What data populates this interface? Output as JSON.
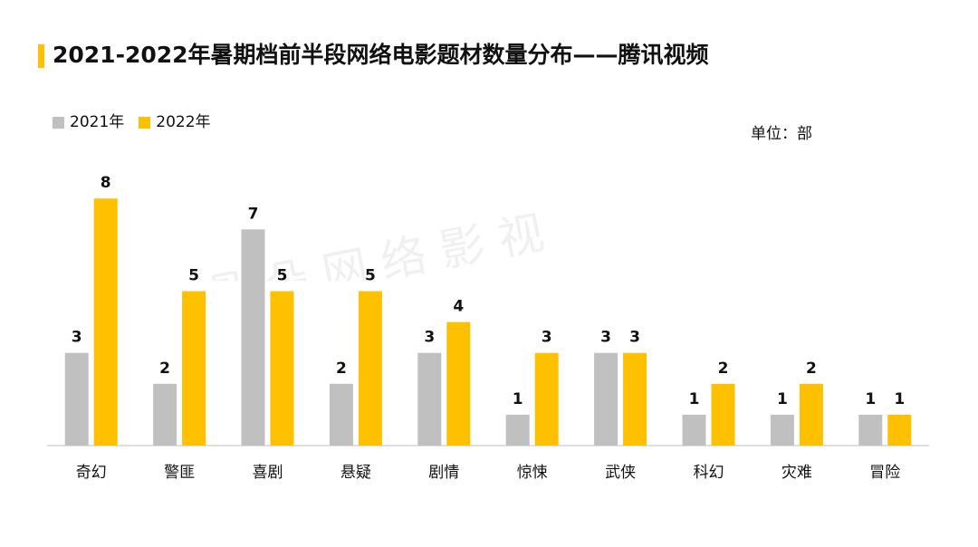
{
  "title": "2021-2022年暑期档前半段网络电影题材数量分布——腾讯视频",
  "unit_note": "单位：部",
  "watermark": "骨 朵 网 络 影 视",
  "colors": {
    "accent": "#FFC000",
    "series_2021": "#C0C0C0",
    "series_2022": "#FFC000",
    "axis": "#BFBFBF"
  },
  "chart_data": {
    "type": "bar",
    "categories": [
      "奇幻",
      "警匪",
      "喜剧",
      "悬疑",
      "剧情",
      "惊悚",
      "武侠",
      "科幻",
      "灾难",
      "冒险"
    ],
    "series": [
      {
        "name": "2021年",
        "values": [
          3,
          2,
          7,
          2,
          3,
          1,
          3,
          1,
          1,
          1
        ]
      },
      {
        "name": "2022年",
        "values": [
          8,
          5,
          5,
          5,
          4,
          3,
          3,
          2,
          2,
          1
        ]
      }
    ],
    "ylim": [
      0,
      8
    ],
    "grid": false,
    "legend": "top-left",
    "data_labels": true
  }
}
